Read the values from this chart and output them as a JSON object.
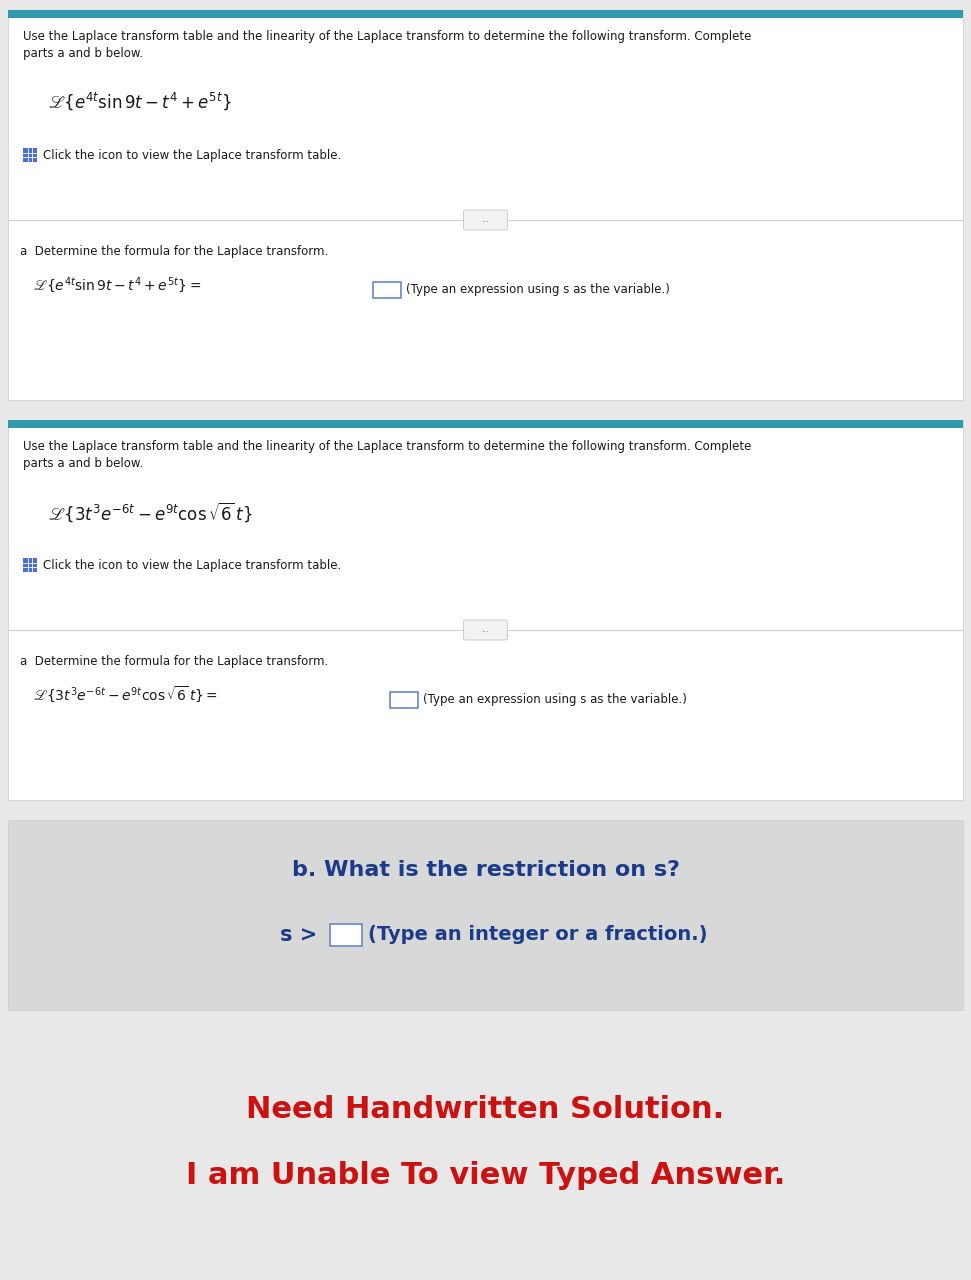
{
  "fig_w": 9.71,
  "fig_h": 12.8,
  "dpi": 100,
  "bg_color": "#ffffff",
  "panel_bg": "#ffffff",
  "gray_bg": "#e8e8e8",
  "teal_bar_color": "#2e9aab",
  "blue_icon_color": "#4a6fd4",
  "dark_text_color": "#1a1a1a",
  "red_text_color": "#cc1111",
  "blue_bold_color": "#1a3a8a",
  "input_box_color": "#6688cc",
  "panel_border_color": "#cccccc",
  "divider_color": "#cccccc",
  "dots_bg": "#f2f2f2",
  "dots_border": "#bbbbbb",
  "panel1": {
    "desc": "Use the Laplace transform table and the linearity of the Laplace transform to determine the following transform. Complete\nparts a and b below.",
    "formula": "$\\mathscr{L}\\{e^{4t}\\sin 9t - t^4 + e^{5t}\\}$",
    "click_text": "Click the icon to view the Laplace transform table.",
    "part_a_label": "a  Determine the formula for the Laplace transform.",
    "part_a_formula": "$\\mathscr{L}\\{e^{4t}\\sin 9t - t^4 + e^{5t}\\} = $",
    "part_a_hint": "(Type an expression using s as the variable.)"
  },
  "panel2": {
    "desc": "Use the Laplace transform table and the linearity of the Laplace transform to determine the following transform. Complete\nparts a and b below.",
    "formula": "$\\mathscr{L}\\{3t^3 e^{-6t} - e^{9t}\\cos\\sqrt{6}\\,t\\}$",
    "click_text": "Click the icon to view the Laplace transform table.",
    "part_a_label": "a  Determine the formula for the Laplace transform.",
    "part_a_formula": "$\\mathscr{L}\\{3t^3 e^{-6t} - e^{9t}\\cos\\sqrt{6}\\,t\\} = $",
    "part_a_hint": "(Type an expression using s as the variable.)"
  },
  "panel3": {
    "part_b_label": "b. What is the restriction on s?",
    "part_b_sub": "s >",
    "part_b_hint": "(Type an integer or a fraction.)"
  },
  "bottom_line1": "Need Handwritten Solution.",
  "bottom_line2": "I am Unable To view Typed Answer."
}
